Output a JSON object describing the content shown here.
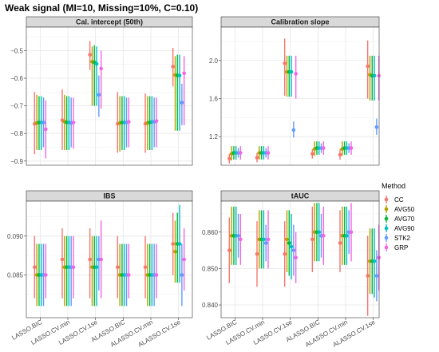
{
  "chart_data": {
    "type": "scatter",
    "title": "Weak signal (MI=10, Missing=10%, C=0.10)",
    "categories": [
      "LASSO.BIC",
      "LASSO.CV.min",
      "LASSO.CV.1se",
      "ALASSO.BIC",
      "ALASSO.CV.min",
      "ALASSO.CV.1se"
    ],
    "legend": {
      "title": "Method",
      "placement": "right",
      "items": [
        {
          "name": "CC",
          "color": "#F8766D"
        },
        {
          "name": "AVG50",
          "color": "#B79F00"
        },
        {
          "name": "AVG70",
          "color": "#00BA38"
        },
        {
          "name": "AVG90",
          "color": "#00BFC4"
        },
        {
          "name": "STK2",
          "color": "#619CFF"
        },
        {
          "name": "GRP",
          "color": "#F564E3"
        }
      ]
    },
    "grid": true,
    "panels": [
      {
        "label": "Cal. intercept (50th)",
        "ylim": [
          -0.915,
          -0.415
        ],
        "yticks": [
          -0.5,
          -0.6,
          -0.7,
          -0.8,
          -0.9
        ],
        "ytick_labels": [
          "−0.5",
          "−0.6",
          "−0.7",
          "−0.8",
          "−0.9"
        ],
        "series": [
          {
            "values": [
              -0.765,
              -0.752,
              -0.515,
              -0.765,
              -0.765,
              -0.558
            ],
            "lower": [
              -0.875,
              -0.86,
              -0.57,
              -0.87,
              -0.87,
              -0.63
            ],
            "upper": [
              -0.65,
              -0.64,
              -0.465,
              -0.65,
              -0.655,
              -0.49
            ]
          },
          {
            "values": [
              -0.762,
              -0.757,
              -0.54,
              -0.762,
              -0.762,
              -0.588
            ],
            "lower": [
              -0.86,
              -0.86,
              -0.7,
              -0.865,
              -0.86,
              -0.79
            ],
            "upper": [
              -0.66,
              -0.66,
              -0.485,
              -0.665,
              -0.665,
              -0.52
            ]
          },
          {
            "values": [
              -0.76,
              -0.76,
              -0.543,
              -0.76,
              -0.76,
              -0.59
            ],
            "lower": [
              -0.86,
              -0.86,
              -0.7,
              -0.86,
              -0.86,
              -0.79
            ],
            "upper": [
              -0.665,
              -0.665,
              -0.48,
              -0.665,
              -0.665,
              -0.515
            ]
          },
          {
            "values": [
              -0.76,
              -0.76,
              -0.548,
              -0.76,
              -0.758,
              -0.59
            ],
            "lower": [
              -0.86,
              -0.86,
              -0.7,
              -0.86,
              -0.86,
              -0.79
            ],
            "upper": [
              -0.665,
              -0.665,
              -0.485,
              -0.665,
              -0.665,
              -0.515
            ]
          },
          {
            "values": [
              -0.76,
              -0.762,
              -0.66,
              -0.76,
              -0.758,
              -0.688
            ],
            "lower": [
              -0.85,
              -0.85,
              -0.74,
              -0.85,
              -0.85,
              -0.77
            ],
            "upper": [
              -0.67,
              -0.67,
              -0.59,
              -0.67,
              -0.67,
              -0.62
            ]
          },
          {
            "values": [
              -0.785,
              -0.76,
              -0.565,
              -0.758,
              -0.755,
              -0.582
            ],
            "lower": [
              -0.89,
              -0.855,
              -0.71,
              -0.85,
              -0.85,
              -0.77
            ],
            "upper": [
              -0.68,
              -0.67,
              -0.5,
              -0.67,
              -0.67,
              -0.52
            ]
          }
        ]
      },
      {
        "label": "Calibration slope",
        "ylim": [
          0.9,
          2.35
        ],
        "yticks": [
          2.0,
          1.6,
          1.2
        ],
        "ytick_labels": [
          "2.0",
          "1.6",
          "1.2"
        ],
        "series": [
          {
            "values": [
              0.97,
              0.98,
              1.97,
              1.02,
              1.01,
              1.94
            ],
            "lower": [
              0.92,
              0.93,
              1.63,
              0.97,
              0.96,
              1.6
            ],
            "upper": [
              1.02,
              1.03,
              2.23,
              1.07,
              1.07,
              2.21
            ]
          },
          {
            "values": [
              1.02,
              1.03,
              1.88,
              1.07,
              1.07,
              1.85
            ],
            "lower": [
              0.95,
              0.96,
              1.62,
              1.0,
              1.0,
              1.58
            ],
            "upper": [
              1.1,
              1.1,
              2.05,
              1.15,
              1.15,
              2.05
            ]
          },
          {
            "values": [
              1.03,
              1.03,
              1.88,
              1.08,
              1.08,
              1.84
            ],
            "lower": [
              0.96,
              0.96,
              1.62,
              1.01,
              1.01,
              1.58
            ],
            "upper": [
              1.1,
              1.1,
              2.05,
              1.15,
              1.15,
              2.05
            ]
          },
          {
            "values": [
              1.03,
              1.03,
              1.88,
              1.08,
              1.08,
              1.84
            ],
            "lower": [
              0.96,
              0.96,
              1.62,
              1.01,
              1.01,
              1.58
            ],
            "upper": [
              1.1,
              1.1,
              2.05,
              1.15,
              1.15,
              2.05
            ]
          },
          {
            "values": [
              1.03,
              1.03,
              1.27,
              1.08,
              1.08,
              1.3
            ],
            "lower": [
              0.98,
              0.98,
              1.19,
              1.03,
              1.03,
              1.22
            ],
            "upper": [
              1.08,
              1.08,
              1.36,
              1.13,
              1.13,
              1.39
            ]
          },
          {
            "values": [
              1.03,
              1.03,
              1.86,
              1.08,
              1.08,
              1.84
            ],
            "lower": [
              0.96,
              0.96,
              1.6,
              1.01,
              1.01,
              1.58
            ],
            "upper": [
              1.1,
              1.1,
              2.05,
              1.15,
              1.15,
              2.05
            ]
          }
        ]
      },
      {
        "label": "IBS",
        "ylim": [
          0.0795,
          0.0945
        ],
        "yticks": [
          0.09,
          0.085
        ],
        "ytick_labels": [
          "0.090",
          "0.085"
        ],
        "series": [
          {
            "values": [
              0.086,
              0.087,
              0.087,
              0.086,
              0.086,
              0.089
            ],
            "lower": [
              0.082,
              0.082,
              0.082,
              0.082,
              0.082,
              0.085
            ],
            "upper": [
              0.09,
              0.091,
              0.091,
              0.09,
              0.09,
              0.093
            ]
          },
          {
            "values": [
              0.085,
              0.086,
              0.086,
              0.085,
              0.085,
              0.088
            ],
            "lower": [
              0.081,
              0.081,
              0.081,
              0.081,
              0.081,
              0.084
            ],
            "upper": [
              0.089,
              0.09,
              0.09,
              0.089,
              0.089,
              0.092
            ]
          },
          {
            "values": [
              0.085,
              0.086,
              0.086,
              0.085,
              0.085,
              0.089
            ],
            "lower": [
              0.081,
              0.081,
              0.081,
              0.081,
              0.081,
              0.084
            ],
            "upper": [
              0.089,
              0.09,
              0.09,
              0.089,
              0.089,
              0.093
            ]
          },
          {
            "values": [
              0.085,
              0.086,
              0.086,
              0.085,
              0.085,
              0.089
            ],
            "lower": [
              0.081,
              0.081,
              0.081,
              0.081,
              0.081,
              0.084
            ],
            "upper": [
              0.089,
              0.09,
              0.09,
              0.089,
              0.089,
              0.094
            ]
          },
          {
            "values": [
              0.085,
              0.086,
              0.087,
              0.085,
              0.085,
              0.085
            ],
            "lower": [
              0.081,
              0.081,
              0.083,
              0.081,
              0.081,
              0.081
            ],
            "upper": [
              0.089,
              0.09,
              0.09,
              0.089,
              0.089,
              0.089
            ]
          },
          {
            "values": [
              0.085,
              0.086,
              0.087,
              0.085,
              0.085,
              0.087
            ],
            "lower": [
              0.082,
              0.082,
              0.082,
              0.082,
              0.082,
              0.083
            ],
            "upper": [
              0.089,
              0.09,
              0.092,
              0.089,
              0.089,
              0.091
            ]
          }
        ]
      },
      {
        "label": "tAUC",
        "ylim": [
          0.8365,
          0.8685
        ],
        "yticks": [
          0.86,
          0.85,
          0.84
        ],
        "ytick_labels": [
          "0.860",
          "0.850",
          "0.840"
        ],
        "series": [
          {
            "values": [
              0.855,
              0.854,
              0.854,
              0.858,
              0.857,
              0.848
            ],
            "lower": [
              0.846,
              0.845,
              0.845,
              0.849,
              0.849,
              0.837
            ],
            "upper": [
              0.864,
              0.863,
              0.863,
              0.867,
              0.866,
              0.859
            ]
          },
          {
            "values": [
              0.859,
              0.858,
              0.858,
              0.86,
              0.859,
              0.852
            ],
            "lower": [
              0.851,
              0.85,
              0.849,
              0.852,
              0.851,
              0.843
            ],
            "upper": [
              0.867,
              0.866,
              0.866,
              0.868,
              0.867,
              0.861
            ]
          },
          {
            "values": [
              0.859,
              0.858,
              0.857,
              0.86,
              0.859,
              0.852
            ],
            "lower": [
              0.851,
              0.85,
              0.848,
              0.852,
              0.851,
              0.843
            ],
            "upper": [
              0.867,
              0.866,
              0.866,
              0.868,
              0.867,
              0.861
            ]
          },
          {
            "values": [
              0.859,
              0.858,
              0.856,
              0.86,
              0.859,
              0.852
            ],
            "lower": [
              0.851,
              0.85,
              0.847,
              0.852,
              0.851,
              0.842
            ],
            "upper": [
              0.867,
              0.866,
              0.865,
              0.868,
              0.867,
              0.861
            ]
          },
          {
            "values": [
              0.859,
              0.857,
              0.855,
              0.859,
              0.86,
              0.848
            ],
            "lower": [
              0.853,
              0.852,
              0.848,
              0.853,
              0.854,
              0.841
            ],
            "upper": [
              0.865,
              0.862,
              0.862,
              0.865,
              0.866,
              0.855
            ]
          },
          {
            "values": [
              0.858,
              0.858,
              0.853,
              0.859,
              0.86,
              0.853
            ],
            "lower": [
              0.851,
              0.85,
              0.846,
              0.851,
              0.852,
              0.844
            ],
            "upper": [
              0.865,
              0.866,
              0.86,
              0.867,
              0.868,
              0.862
            ]
          }
        ]
      }
    ]
  }
}
